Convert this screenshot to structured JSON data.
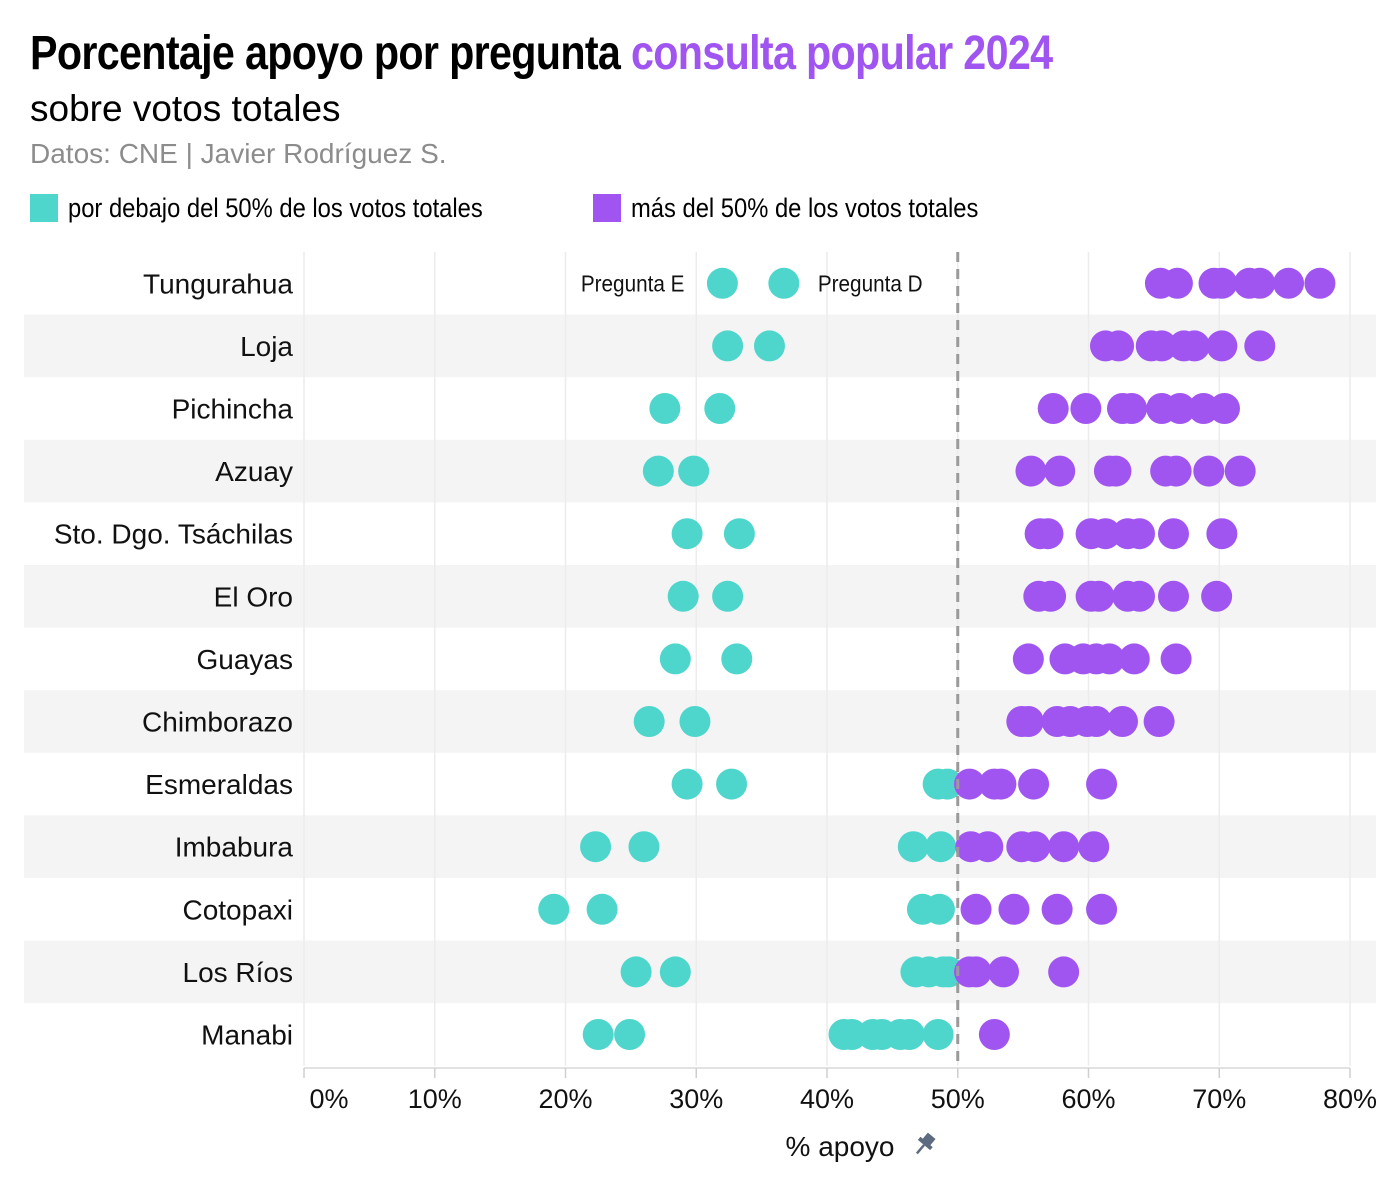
{
  "header": {
    "title_main": "Porcentaje apoyo por pregunta",
    "title_highlight": "consulta popular 2024",
    "subtitle": "sobre votos totales",
    "source": "Datos: CNE | Javier Rodríguez S."
  },
  "legend": {
    "below": "por debajo del 50% de los votos totales",
    "above": "más del 50% de los votos totales"
  },
  "colors": {
    "below": "#4fd6cc",
    "above": "#a155f0",
    "band": "#f4f4f4",
    "grid": "#ececec",
    "refline": "#9a9a9a"
  },
  "chart_data": {
    "type": "scatter",
    "xlabel": "% apoyo",
    "xlim": [
      0,
      82
    ],
    "xticks": [
      0,
      10,
      20,
      30,
      40,
      50,
      60,
      70,
      80
    ],
    "xtick_labels": [
      "0%",
      "10%",
      "20%",
      "30%",
      "40%",
      "50%",
      "60%",
      "70%",
      "80%"
    ],
    "threshold": 50,
    "annotations": [
      {
        "text": "Pregunta E",
        "province": "Tungurahua",
        "x": 32.0,
        "side": "left"
      },
      {
        "text": "Pregunta D",
        "province": "Tungurahua",
        "x": 36.7,
        "side": "right"
      }
    ],
    "provinces": [
      {
        "name": "Tungurahua",
        "values": [
          32.0,
          36.7,
          65.5,
          66.8,
          69.6,
          70.2,
          72.3,
          73.1,
          75.3,
          77.7
        ]
      },
      {
        "name": "Loja",
        "values": [
          32.4,
          35.6,
          61.3,
          62.3,
          64.8,
          65.6,
          67.3,
          68.1,
          70.2,
          73.1
        ]
      },
      {
        "name": "Pichincha",
        "values": [
          27.6,
          31.8,
          57.3,
          59.8,
          62.6,
          63.3,
          65.6,
          67.0,
          68.8,
          70.4
        ]
      },
      {
        "name": "Azuay",
        "values": [
          27.1,
          29.8,
          55.6,
          57.8,
          61.6,
          62.1,
          65.9,
          66.7,
          69.2,
          71.6
        ]
      },
      {
        "name": "Sto. Dgo. Tsáchilas",
        "values": [
          29.3,
          33.3,
          56.3,
          56.9,
          60.2,
          61.3,
          63.0,
          63.9,
          66.5,
          70.2
        ]
      },
      {
        "name": "El Oro",
        "values": [
          29.0,
          32.4,
          56.2,
          57.1,
          60.2,
          60.8,
          63.0,
          63.9,
          66.5,
          69.8
        ]
      },
      {
        "name": "Guayas",
        "values": [
          28.4,
          33.1,
          55.4,
          58.2,
          59.6,
          60.6,
          61.6,
          63.5,
          66.7
        ]
      },
      {
        "name": "Chimborazo",
        "values": [
          26.4,
          29.9,
          54.9,
          55.4,
          57.6,
          58.6,
          59.9,
          60.6,
          62.6,
          65.4
        ]
      },
      {
        "name": "Esmeraldas",
        "values": [
          29.3,
          32.7,
          48.5,
          49.2,
          50.9,
          52.8,
          53.3,
          55.8,
          61.0
        ]
      },
      {
        "name": "Imbabura",
        "values": [
          22.3,
          26.0,
          46.6,
          48.7,
          51.0,
          52.3,
          54.9,
          55.9,
          58.1,
          60.4
        ]
      },
      {
        "name": "Cotopaxi",
        "values": [
          19.1,
          22.8,
          47.3,
          48.6,
          51.4,
          54.3,
          57.6,
          61.0
        ]
      },
      {
        "name": "Los Ríos",
        "values": [
          25.4,
          28.4,
          46.8,
          47.8,
          48.9,
          49.3,
          50.9,
          51.4,
          53.5,
          58.1
        ]
      },
      {
        "name": "Manabi",
        "values": [
          22.5,
          24.9,
          41.3,
          41.9,
          43.5,
          44.2,
          45.6,
          46.3,
          48.5,
          52.8
        ]
      }
    ]
  }
}
